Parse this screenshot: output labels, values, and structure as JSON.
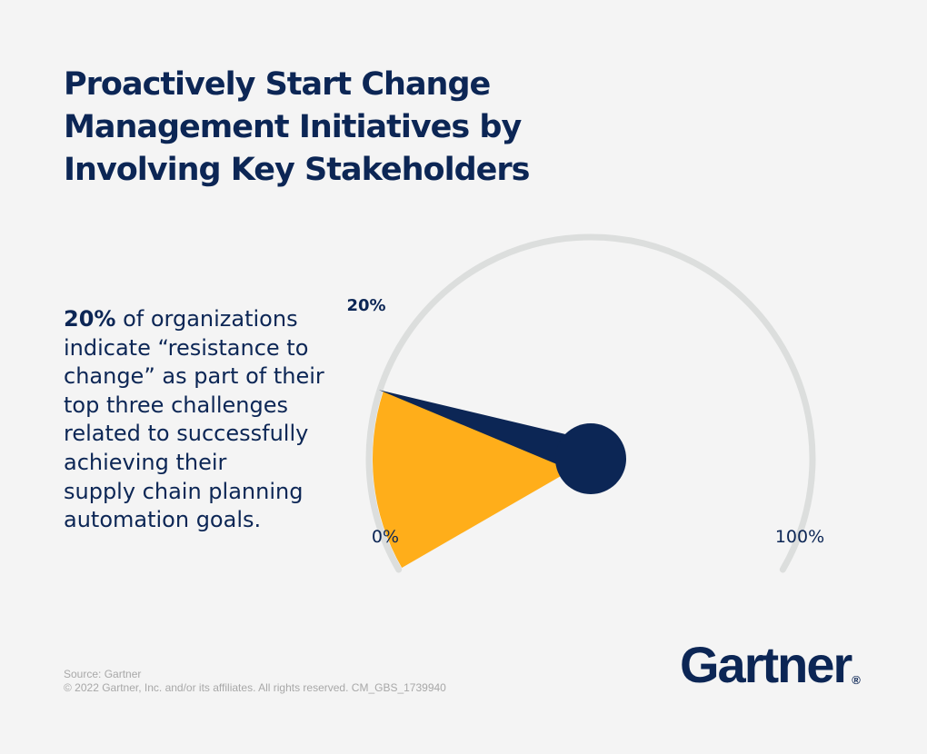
{
  "title": {
    "line1": "Proactively Start Change",
    "line2": "Management Initiatives by",
    "line3": "Involving Key Stakeholders"
  },
  "statement": {
    "highlight": "20%",
    "line1_rest": " of organizations",
    "line2": "indicate “resistance to",
    "line3": "change” as part of their",
    "line4": "top three challenges",
    "line5": "related to successfully",
    "line6": "achieving their",
    "line7": "supply chain planning",
    "line8": "automation goals."
  },
  "chart_data": {
    "type": "gauge",
    "value": 20,
    "min": 0,
    "max": 100,
    "value_label": "20%",
    "min_label": "0%",
    "max_label": "100%",
    "colors": {
      "track": "#dcdedd",
      "fill": "#ffae1a",
      "needle": "#0c2655"
    }
  },
  "footer": {
    "source": "Source: Gartner",
    "copyright": "© 2022 Gartner, Inc. and/or its affiliates. All rights reserved. CM_GBS_1739940"
  },
  "logo": {
    "text": "Gartner",
    "mark": "®"
  },
  "colors": {
    "navy": "#0c2655",
    "background": "#f4f4f4",
    "muted": "#a8a8a8"
  }
}
